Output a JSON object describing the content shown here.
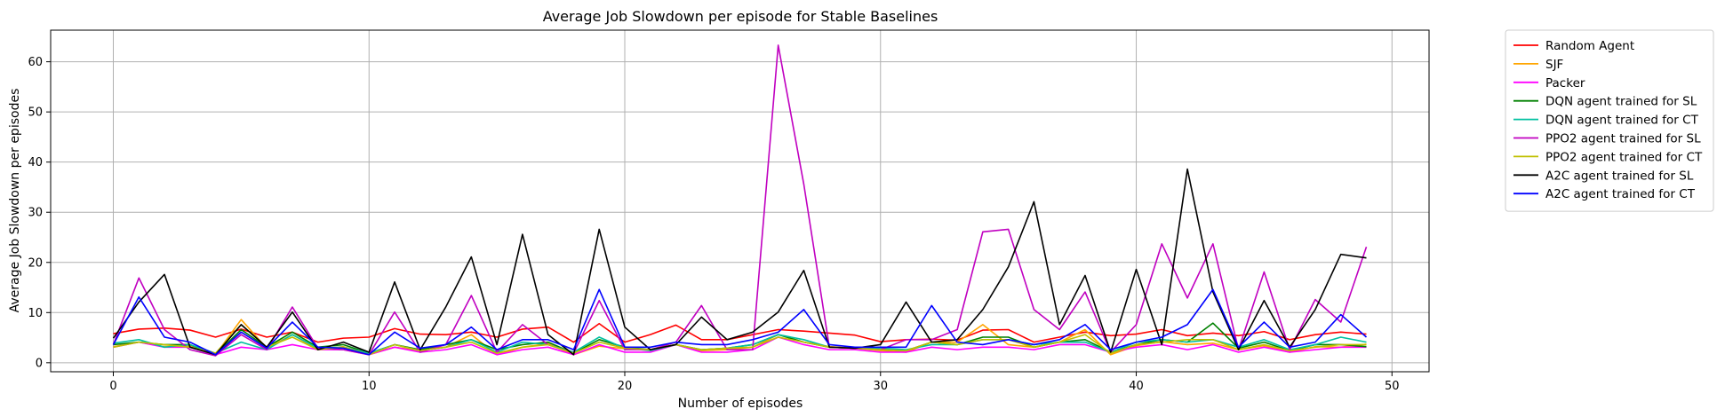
{
  "chart_data": {
    "type": "line",
    "title": "Average Job Slowdown per episode for Stable Baselines",
    "xlabel": "Number of episodes",
    "ylabel": "Average Job Slowdown per episodes",
    "xlim": [
      -2.45,
      51.45
    ],
    "ylim": [
      -1.8,
      66.3
    ],
    "xticks": [
      0,
      10,
      20,
      30,
      40,
      50
    ],
    "yticks": [
      0,
      10,
      20,
      30,
      40,
      50,
      60
    ],
    "grid": true,
    "legend_position": "outside-right",
    "x": [
      0,
      1,
      2,
      3,
      4,
      5,
      6,
      7,
      8,
      9,
      10,
      11,
      12,
      13,
      14,
      15,
      16,
      17,
      18,
      19,
      20,
      21,
      22,
      23,
      24,
      25,
      26,
      27,
      28,
      29,
      30,
      31,
      32,
      33,
      34,
      35,
      36,
      37,
      38,
      39,
      40,
      41,
      42,
      43,
      44,
      45,
      46,
      47,
      48,
      49
    ],
    "series": [
      {
        "name": "Random Agent",
        "color": "#ff0000",
        "values": [
          5.8,
          6.7,
          6.9,
          6.5,
          5.1,
          6.7,
          5.1,
          6.1,
          4.1,
          4.9,
          5.1,
          6.8,
          5.7,
          5.6,
          6.1,
          5.1,
          6.7,
          7.1,
          4.1,
          7.8,
          4.1,
          5.6,
          7.5,
          4.6,
          4.6,
          5.6,
          6.6,
          6.3,
          5.9,
          5.5,
          4.2,
          4.6,
          4.7,
          4.5,
          6.5,
          6.6,
          4.1,
          5.1,
          6.1,
          5.4,
          5.7,
          6.6,
          5.4,
          5.9,
          5.4,
          6.2,
          4.6,
          5.6,
          6.1,
          5.7
        ]
      },
      {
        "name": "SJF",
        "color": "#ffa500",
        "values": [
          3.2,
          4.1,
          3.2,
          3.4,
          1.6,
          8.6,
          2.9,
          5.6,
          2.7,
          3.2,
          1.6,
          3.1,
          2.4,
          3.1,
          5.6,
          1.6,
          3.1,
          3.8,
          1.6,
          3.3,
          2.8,
          2.6,
          3.6,
          2.4,
          2.6,
          3.1,
          5.6,
          4.1,
          3.2,
          2.9,
          2.4,
          2.1,
          4.1,
          4.1,
          7.6,
          3.6,
          3.1,
          4.1,
          6.6,
          1.6,
          3.4,
          4.2,
          3.6,
          3.9,
          2.6,
          3.4,
          2.1,
          3.2,
          3.1,
          3.7
        ]
      },
      {
        "name": "Packer",
        "color": "#ff00ff",
        "values": [
          3.1,
          4.1,
          3.1,
          3.1,
          1.6,
          3.1,
          2.6,
          3.6,
          2.6,
          2.6,
          1.6,
          3.1,
          2.1,
          2.6,
          3.6,
          1.6,
          2.6,
          3.1,
          1.6,
          3.6,
          2.1,
          2.1,
          3.6,
          2.1,
          2.1,
          2.6,
          5.1,
          3.6,
          2.6,
          2.6,
          2.1,
          2.1,
          3.1,
          2.6,
          3.1,
          3.1,
          2.6,
          3.6,
          3.6,
          2.1,
          3.1,
          3.6,
          2.6,
          3.6,
          2.1,
          3.1,
          2.1,
          2.6,
          3.1,
          3.1
        ]
      },
      {
        "name": "DQN agent trained for SL",
        "color": "#008000",
        "values": [
          3.6,
          4.1,
          3.6,
          3.6,
          1.6,
          6.6,
          3.1,
          6.1,
          3.1,
          3.6,
          1.9,
          3.6,
          2.6,
          3.6,
          4.6,
          2.6,
          3.6,
          4.1,
          1.9,
          4.6,
          3.1,
          2.6,
          3.6,
          2.6,
          2.9,
          3.6,
          5.6,
          4.1,
          3.1,
          2.9,
          2.6,
          2.4,
          4.1,
          3.6,
          5.1,
          5.1,
          3.1,
          4.1,
          4.6,
          2.1,
          3.6,
          4.6,
          4.1,
          7.9,
          2.9,
          4.1,
          2.4,
          3.6,
          3.6,
          3.2
        ]
      },
      {
        "name": "DQN agent trained for CT",
        "color": "#00c0a0",
        "values": [
          3.9,
          4.6,
          3.1,
          3.6,
          1.9,
          4.1,
          2.6,
          5.6,
          2.9,
          3.1,
          1.9,
          3.6,
          2.4,
          3.1,
          4.6,
          2.1,
          4.1,
          3.6,
          2.1,
          5.1,
          2.9,
          2.4,
          3.6,
          2.6,
          2.9,
          3.6,
          5.6,
          4.6,
          3.1,
          2.9,
          2.9,
          2.6,
          3.6,
          3.6,
          4.6,
          4.6,
          3.6,
          4.1,
          4.1,
          2.1,
          4.1,
          4.6,
          4.1,
          4.6,
          3.1,
          4.6,
          2.6,
          3.6,
          5.1,
          4.1
        ]
      },
      {
        "name": "PPO2 agent trained for SL",
        "color": "#c000c0",
        "values": [
          3.6,
          16.9,
          6.6,
          2.6,
          1.4,
          5.6,
          2.6,
          11.1,
          2.9,
          2.6,
          1.6,
          10.1,
          2.1,
          3.6,
          13.4,
          2.1,
          7.6,
          3.6,
          1.9,
          12.4,
          2.6,
          2.6,
          4.1,
          11.4,
          2.6,
          2.6,
          63.3,
          35.6,
          3.1,
          2.9,
          2.6,
          4.6,
          4.6,
          6.6,
          26.1,
          26.6,
          10.6,
          6.6,
          14.1,
          2.1,
          7.6,
          23.7,
          12.9,
          23.7,
          2.6,
          18.1,
          2.6,
          12.6,
          8.1,
          23.1
        ]
      },
      {
        "name": "PPO2 agent trained for CT",
        "color": "#c0c000",
        "values": [
          3.1,
          4.1,
          3.6,
          3.1,
          1.9,
          7.6,
          3.1,
          5.1,
          2.6,
          3.1,
          1.6,
          3.6,
          2.4,
          3.1,
          4.1,
          1.9,
          3.1,
          3.6,
          1.9,
          4.1,
          2.9,
          2.6,
          3.6,
          2.6,
          2.9,
          3.1,
          5.1,
          4.1,
          3.1,
          2.9,
          2.6,
          2.4,
          4.1,
          3.6,
          4.6,
          4.6,
          3.1,
          4.1,
          5.6,
          1.9,
          3.6,
          4.1,
          4.6,
          4.6,
          2.6,
          3.6,
          2.4,
          3.1,
          3.6,
          3.6
        ]
      },
      {
        "name": "A2C agent trained for SL",
        "color": "#000000",
        "values": [
          4.9,
          12.1,
          17.6,
          3.1,
          1.6,
          7.6,
          3.1,
          10.1,
          2.6,
          4.1,
          2.1,
          16.1,
          2.6,
          11.1,
          21.1,
          3.6,
          25.6,
          5.6,
          1.6,
          26.6,
          7.1,
          2.6,
          3.6,
          9.1,
          4.6,
          6.1,
          10.1,
          18.4,
          3.1,
          2.9,
          3.6,
          12.1,
          4.1,
          4.6,
          10.6,
          19.1,
          32.1,
          7.6,
          17.4,
          2.1,
          18.6,
          3.6,
          38.6,
          14.1,
          2.6,
          12.4,
          3.1,
          10.6,
          21.6,
          20.9
        ]
      },
      {
        "name": "A2C agent trained for CT",
        "color": "#0000ff",
        "values": [
          3.6,
          13.1,
          5.1,
          4.1,
          1.6,
          6.1,
          2.9,
          8.1,
          3.1,
          2.9,
          1.6,
          6.1,
          2.9,
          3.6,
          7.1,
          2.6,
          4.6,
          4.6,
          2.6,
          14.6,
          3.1,
          3.1,
          4.1,
          3.6,
          3.6,
          4.6,
          6.1,
          10.6,
          3.6,
          3.1,
          3.1,
          3.1,
          11.4,
          4.1,
          3.6,
          4.6,
          3.6,
          4.6,
          7.6,
          2.6,
          4.1,
          5.1,
          7.6,
          14.6,
          3.1,
          8.1,
          3.1,
          4.1,
          9.6,
          5.1
        ]
      }
    ]
  }
}
